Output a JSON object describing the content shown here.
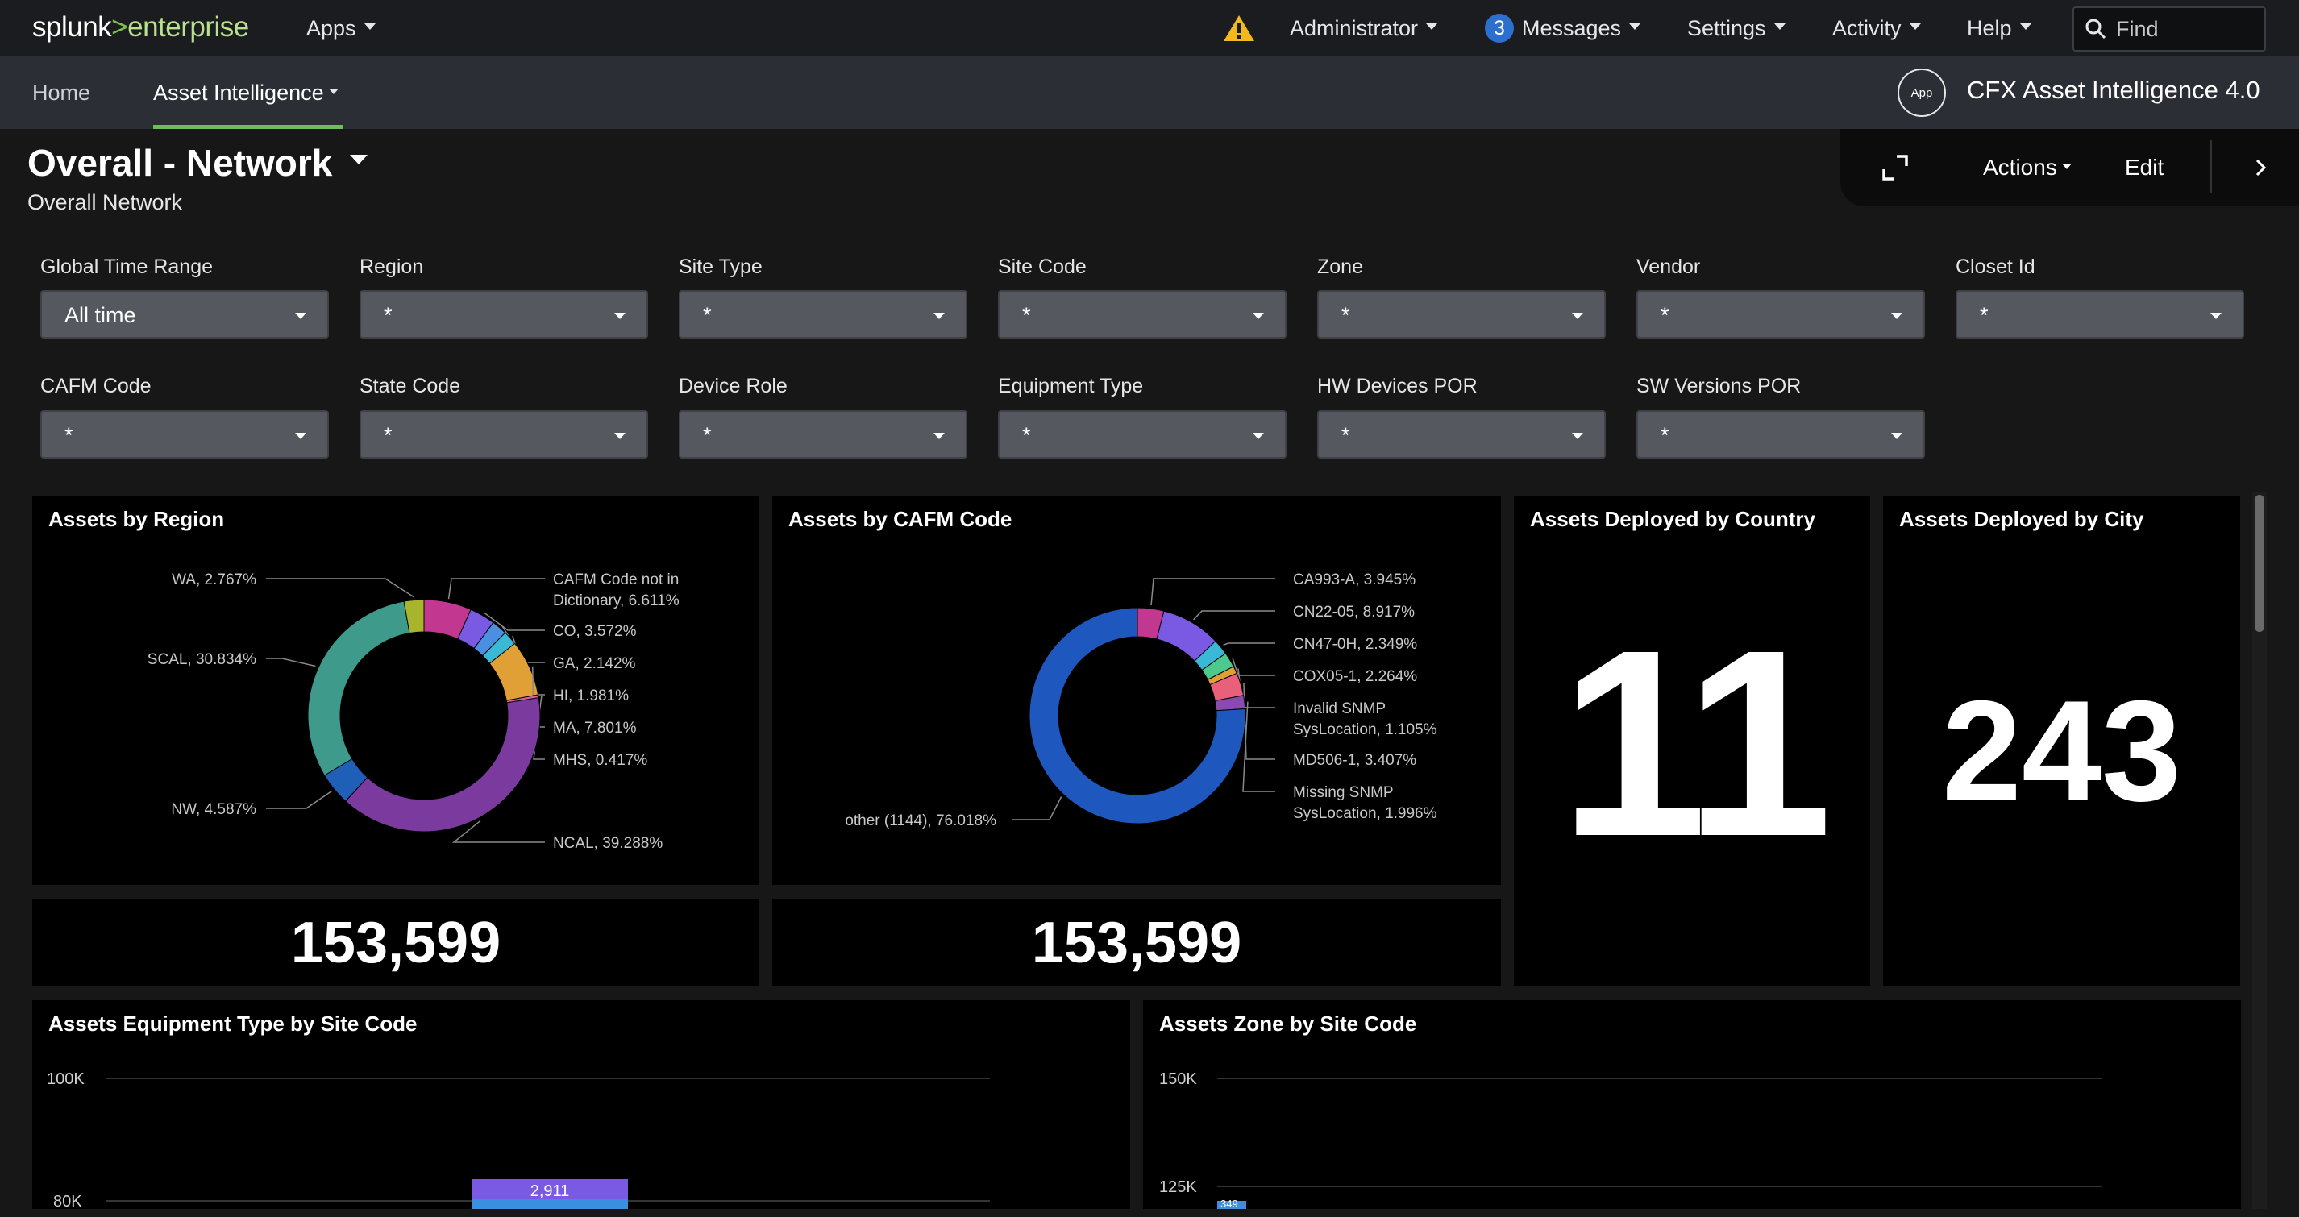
{
  "header": {
    "logo_prefix": "splunk",
    "logo_sep": ">",
    "logo_suffix": "enterprise",
    "apps_label": "Apps",
    "admin_label": "Administrator",
    "messages_count": "3",
    "messages_label": "Messages",
    "settings_label": "Settings",
    "activity_label": "Activity",
    "help_label": "Help",
    "find_placeholder": "Find"
  },
  "appbar": {
    "home_label": "Home",
    "asset_label": "Asset Intelligence",
    "app_badge": "App",
    "app_name": "CFX Asset Intelligence 4.0"
  },
  "dashboard": {
    "title": "Overall - Network",
    "subtitle": "Overall Network",
    "actions_label": "Actions",
    "edit_label": "Edit"
  },
  "filters": [
    {
      "label": "Global Time Range",
      "value": "All time"
    },
    {
      "label": "Region",
      "value": "*"
    },
    {
      "label": "Site Type",
      "value": "*"
    },
    {
      "label": "Site Code",
      "value": "*"
    },
    {
      "label": "Zone",
      "value": "*"
    },
    {
      "label": "Vendor",
      "value": "*"
    },
    {
      "label": "Closet Id",
      "value": "*"
    },
    {
      "label": "CAFM Code",
      "value": "*"
    },
    {
      "label": "State Code",
      "value": "*"
    },
    {
      "label": "Device Role",
      "value": "*"
    },
    {
      "label": "Equipment Type",
      "value": "*"
    },
    {
      "label": "HW Devices POR",
      "value": "*"
    },
    {
      "label": "SW Versions POR",
      "value": "*"
    }
  ],
  "panels": {
    "region_title": "Assets by Region",
    "cafm_title": "Assets by CAFM Code",
    "country_title": "Assets Deployed by Country",
    "city_title": "Assets Deployed by City",
    "equip_title": "Assets Equipment Type by Site Code",
    "zone_title": "Assets Zone by Site Code",
    "region_total": "153,599",
    "cafm_total": "153,599",
    "country_value": "11",
    "city_value": "243"
  },
  "chart_data": [
    {
      "type": "pie",
      "title": "Assets by Region",
      "slices": [
        {
          "label": "CAFM Code not in Dictionary, 6.611%",
          "value": 6.611,
          "color": "#c2378f"
        },
        {
          "label": "CO, 3.572%",
          "value": 3.572,
          "color": "#7a5ae3"
        },
        {
          "label": "GA, 2.142%",
          "value": 2.142,
          "color": "#4a8fe0"
        },
        {
          "label": "HI, 1.981%",
          "value": 1.981,
          "color": "#3ab8d6"
        },
        {
          "label": "MA, 7.801%",
          "value": 7.801,
          "color": "#e0a036"
        },
        {
          "label": "MHS, 0.417%",
          "value": 0.417,
          "color": "#d9609a"
        },
        {
          "label": "NCAL, 39.288%",
          "value": 39.288,
          "color": "#7b3a9e"
        },
        {
          "label": "NW, 4.587%",
          "value": 4.587,
          "color": "#1f5fb8"
        },
        {
          "label": "SCAL, 30.834%",
          "value": 30.834,
          "color": "#3e9a8a"
        },
        {
          "label": "WA, 2.767%",
          "value": 2.767,
          "color": "#a8b52c"
        }
      ]
    },
    {
      "type": "pie",
      "title": "Assets by CAFM Code",
      "slices": [
        {
          "label": "CA993-A, 3.945%",
          "value": 3.945,
          "color": "#c2378f"
        },
        {
          "label": "CN22-05, 8.917%",
          "value": 8.917,
          "color": "#7a5ae3"
        },
        {
          "label": "CN47-0H, 2.349%",
          "value": 2.349,
          "color": "#3ab8d6"
        },
        {
          "label": "COX05-1, 2.264%",
          "value": 2.264,
          "color": "#4dc98e"
        },
        {
          "label": "Invalid SNMP SysLocation, 1.105%",
          "value": 1.105,
          "color": "#e0a036"
        },
        {
          "label": "MD506-1, 3.407%",
          "value": 3.407,
          "color": "#e8607a"
        },
        {
          "label": "Missing SNMP SysLocation, 1.996%",
          "value": 1.996,
          "color": "#8a4bb0"
        },
        {
          "label": "other (1144), 76.018%",
          "value": 76.018,
          "color": "#1e58bf"
        }
      ]
    },
    {
      "type": "bar",
      "title": "Assets Equipment Type by Site Code",
      "y_ticks": [
        "100K",
        "80K"
      ],
      "visible_bar_label": "2,911"
    },
    {
      "type": "bar",
      "title": "Assets Zone by Site Code",
      "y_ticks": [
        "150K",
        "125K"
      ],
      "visible_bar_label": "349"
    }
  ]
}
